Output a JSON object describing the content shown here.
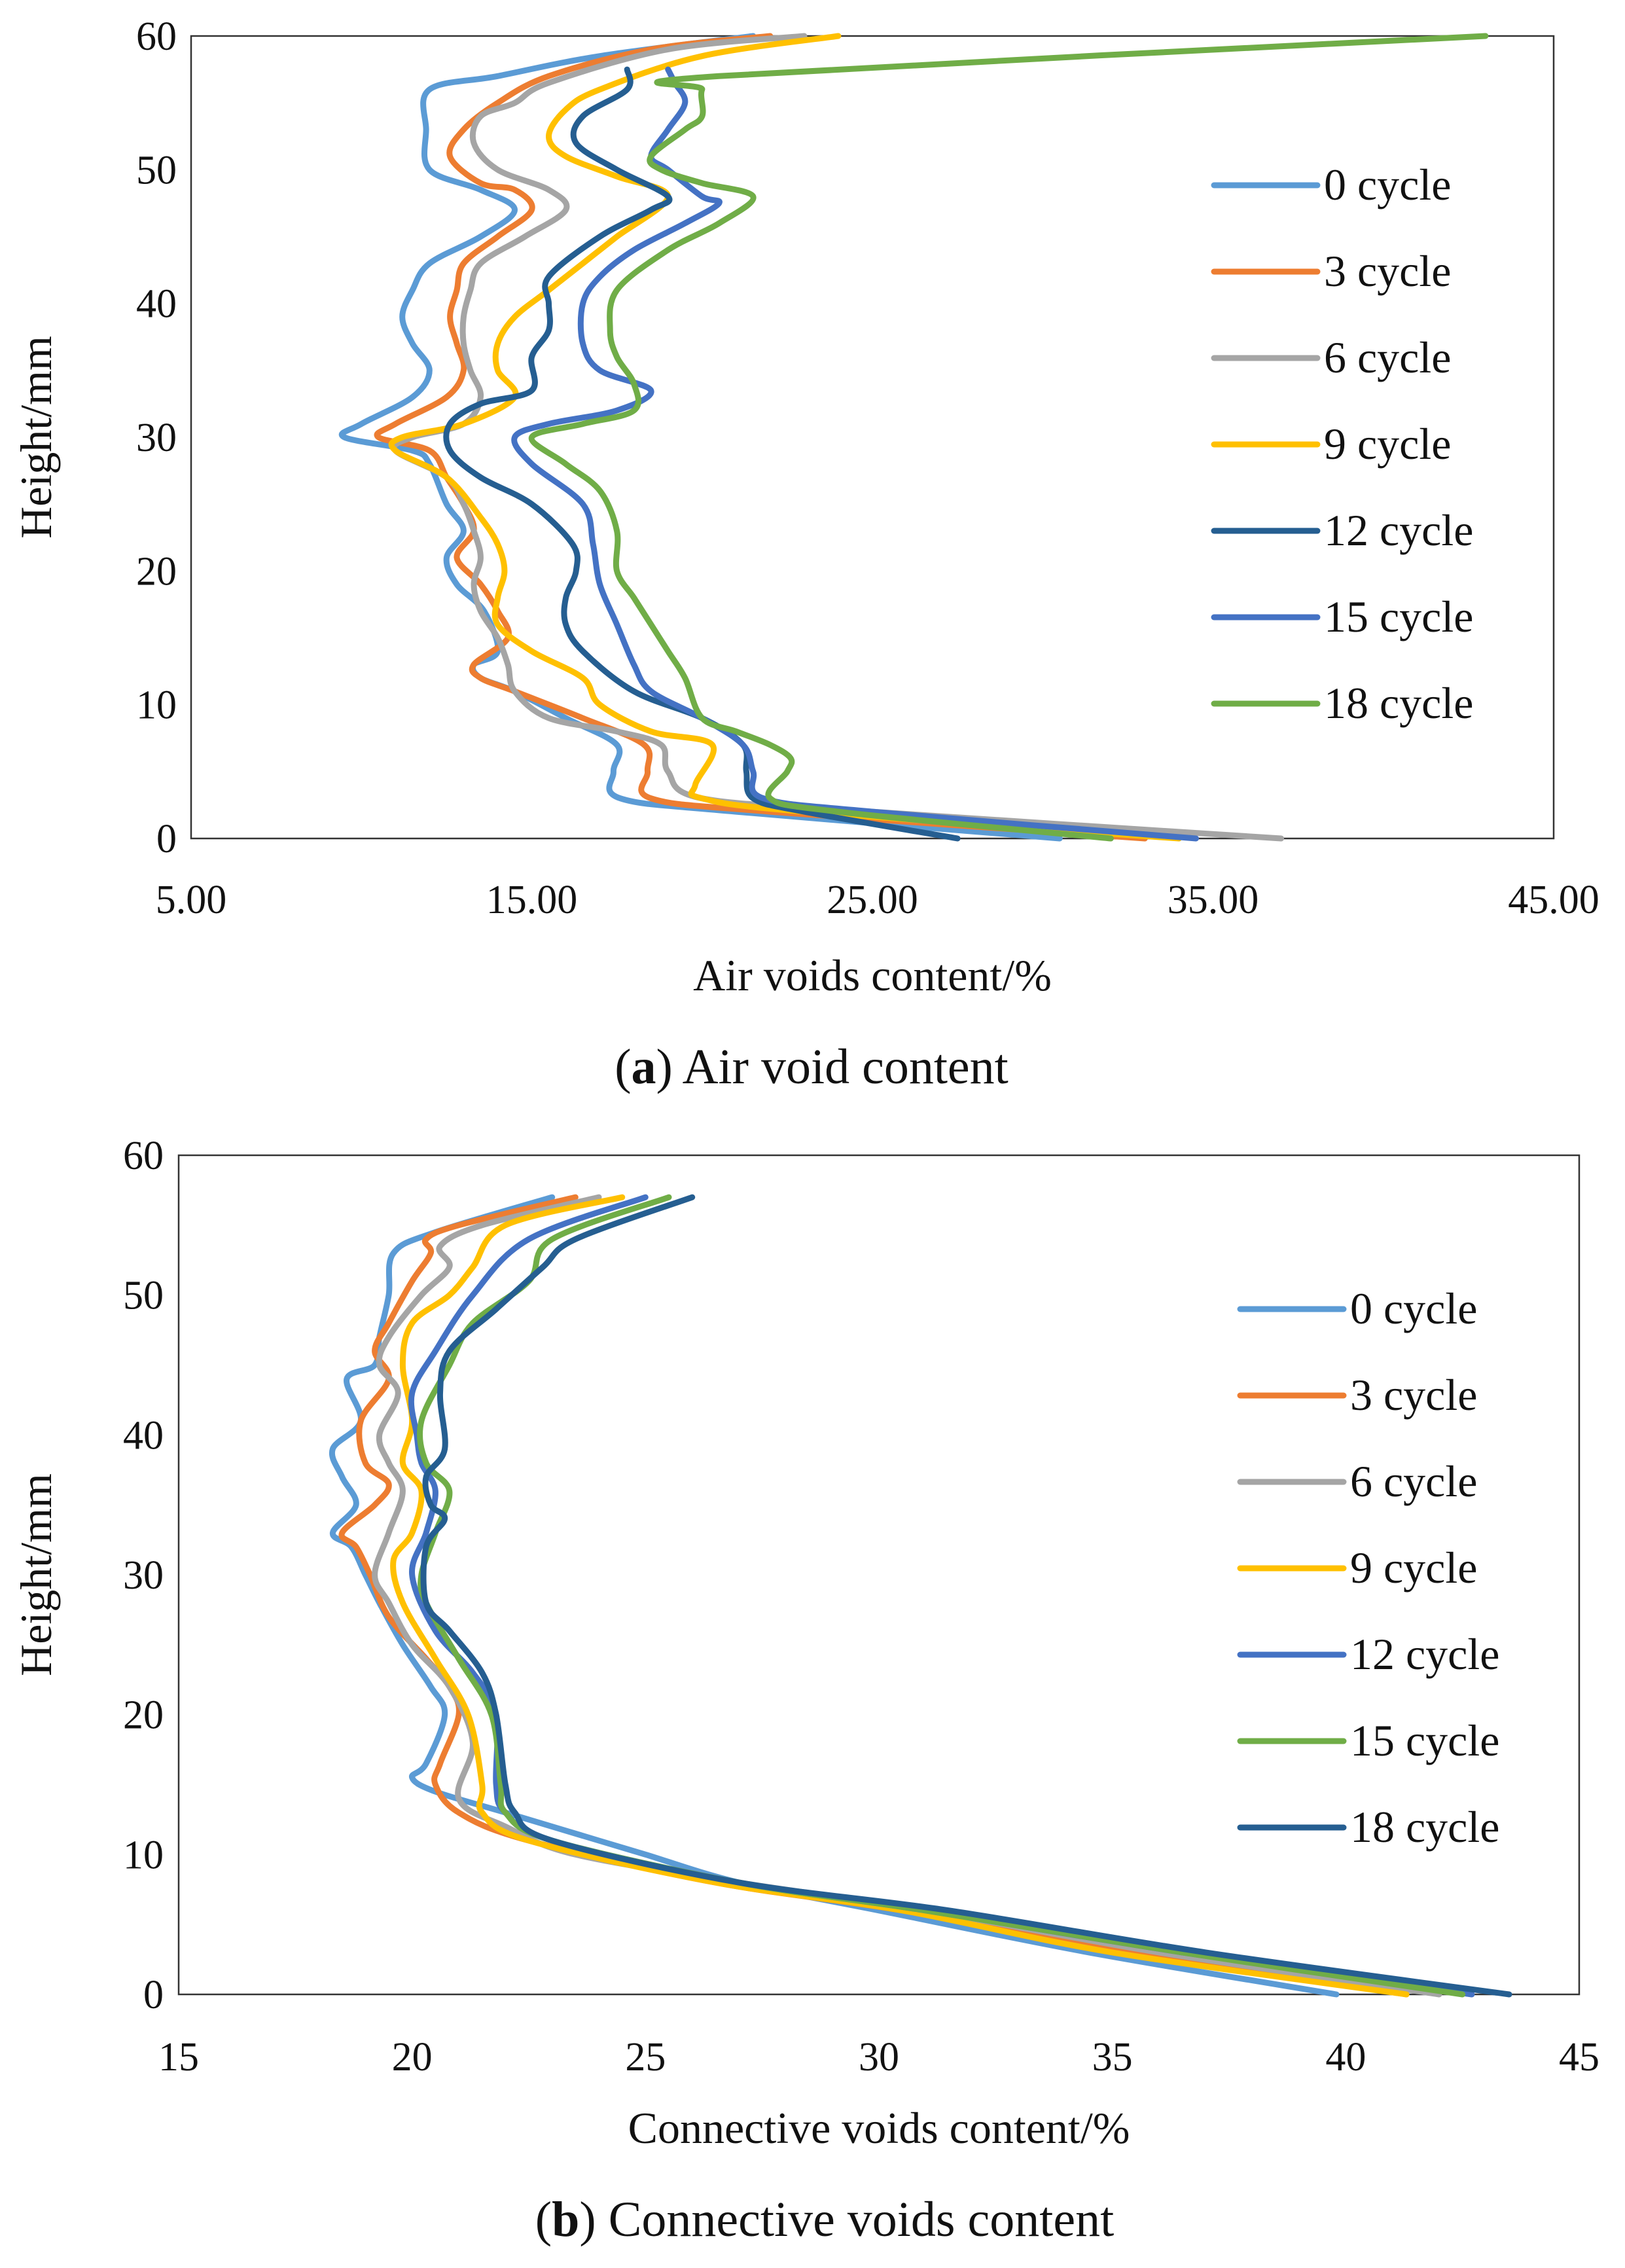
{
  "colors": {
    "c0": "#5B9BD5",
    "c3": "#ED7D31",
    "c6": "#A5A5A5",
    "c9": "#FFC000",
    "c12": "#255E91",
    "c15": "#4472C4",
    "c18": "#70AD47"
  },
  "chart_data": [
    {
      "type": "line",
      "title": "",
      "caption_prefix": "a",
      "caption_text": "Air void content",
      "xlabel": "Air voids content/%",
      "ylabel": "Height/mm",
      "xlim": [
        5,
        45
      ],
      "ylim": [
        0,
        60
      ],
      "xticks": [
        "5.00",
        "15.00",
        "25.00",
        "35.00",
        "45.00"
      ],
      "yticks": [
        "0",
        "10",
        "20",
        "30",
        "40",
        "50",
        "60"
      ],
      "legend_position": "right",
      "series": [
        {
          "name": "0 cycle",
          "color": "#5B9BD5",
          "x": [
            30.5,
            21,
            17.6,
            17.4,
            17.5,
            16,
            14.5,
            13.5,
            13.3,
            14,
            13.6,
            12.8,
            12.5,
            13,
            12.5,
            12,
            11.5,
            9.5,
            10,
            11.5,
            12,
            11.5,
            11.2,
            11.5,
            12,
            13.5,
            14.5,
            13.5,
            12,
            11.9,
            12,
            14,
            17,
            21.5
          ],
          "y": [
            0,
            2,
            3,
            5,
            7,
            9,
            11,
            12,
            13,
            14,
            17,
            19,
            21,
            23,
            25,
            28,
            29,
            30,
            31,
            33,
            35,
            37,
            39,
            41,
            43,
            45,
            47,
            48.5,
            50,
            53,
            56,
            57,
            58.5,
            60
          ]
        },
        {
          "name": "3 cycle",
          "color": "#ED7D31",
          "x": [
            33,
            22,
            18.5,
            18.4,
            18.3,
            16.5,
            14.5,
            13.5,
            13.3,
            14.3,
            14,
            13.5,
            12.8,
            13.3,
            13,
            12.5,
            12,
            10.5,
            11,
            12.5,
            13,
            12.8,
            12.6,
            12.8,
            13,
            14,
            15,
            14.5,
            13.5,
            12.6,
            13,
            14,
            15.5,
            18.5,
            22
          ],
          "y": [
            0,
            2,
            3,
            5,
            7,
            9,
            11,
            12,
            13,
            15,
            17,
            19,
            21,
            23,
            25,
            27,
            29,
            30,
            31,
            33,
            35,
            37,
            39,
            41,
            43,
            45,
            47,
            48.5,
            49,
            51,
            53,
            55,
            57,
            59,
            60
          ]
        },
        {
          "name": "6 cycle",
          "color": "#A5A5A5",
          "x": [
            37,
            25,
            20,
            19,
            18.8,
            17.5,
            15.5,
            14.5,
            14.3,
            14,
            13.5,
            13.3,
            13.5,
            13.3,
            13,
            12.5,
            11,
            11.5,
            13,
            13.5,
            13.2,
            13,
            13,
            13.2,
            13.5,
            14.8,
            16,
            15.5,
            14,
            13.3,
            13.5,
            14.5,
            15.5,
            19,
            23
          ],
          "y": [
            0,
            2,
            3,
            5,
            7,
            8,
            9,
            11,
            13,
            15,
            17,
            19,
            21,
            23,
            25,
            27,
            29,
            30,
            31,
            33,
            35,
            37,
            39,
            41,
            43,
            45,
            47,
            48.5,
            50,
            52,
            54,
            55,
            56.5,
            59,
            60
          ]
        },
        {
          "name": "9 cycle",
          "color": "#FFC000",
          "x": [
            34,
            23,
            20,
            19.8,
            20.3,
            18.5,
            17,
            16.5,
            15,
            14,
            14,
            14.2,
            14,
            13.5,
            12.5,
            11,
            11.2,
            13,
            14.5,
            14,
            14,
            14.5,
            15.5,
            16.5,
            17.5,
            19,
            17.5,
            16,
            15.5,
            16,
            17,
            20,
            24
          ],
          "y": [
            0,
            2,
            3,
            4,
            7,
            8,
            10,
            12,
            14,
            16,
            18,
            20,
            22,
            24,
            27,
            29,
            30,
            31,
            33,
            35,
            37,
            39,
            41,
            43,
            45,
            48,
            49.5,
            51,
            52.5,
            54.5,
            56,
            58.5,
            60
          ]
        },
        {
          "name": "12 cycle",
          "color": "#255E91",
          "x": [
            27.5,
            23,
            21.5,
            21.3,
            21.2,
            20,
            18,
            16.5,
            16,
            16,
            16.3,
            16.2,
            15,
            13.5,
            12.6,
            12.6,
            13.5,
            15,
            15,
            15.5,
            15.5,
            15.5,
            17,
            18.5,
            19,
            17.5,
            16.3,
            16.5,
            17.8,
            17.8
          ],
          "y": [
            0,
            2,
            3,
            5,
            7,
            9,
            11,
            14,
            16,
            18,
            20,
            22,
            25,
            27,
            29,
            31,
            32.5,
            33.5,
            36,
            38,
            40,
            42,
            45,
            47,
            48,
            50,
            52,
            54,
            56,
            57.5
          ]
        },
        {
          "name": "15 cycle",
          "color": "#4472C4",
          "x": [
            34.5,
            25,
            21.8,
            21.5,
            21.2,
            20,
            18.5,
            18,
            17.5,
            17,
            16.8,
            16.5,
            15,
            14.5,
            15.5,
            17.5,
            18.5,
            17,
            16.5,
            16.5,
            17,
            18,
            19.5,
            20.5,
            20,
            19,
            18.5,
            19,
            19.5,
            19.2,
            19
          ],
          "y": [
            0,
            2,
            3,
            5,
            7,
            9,
            11,
            13,
            16,
            19,
            22,
            25,
            28,
            30,
            31,
            32,
            33.5,
            35,
            37,
            40,
            42,
            44,
            46,
            47.5,
            48,
            50,
            51,
            53,
            55,
            56.5,
            57.5
          ]
        },
        {
          "name": "18 cycle",
          "color": "#70AD47",
          "x": [
            32,
            24,
            22,
            22.5,
            22.6,
            22,
            21,
            20,
            19.5,
            19,
            18.5,
            18,
            17.5,
            17.5,
            17,
            16,
            15,
            16.5,
            18,
            18,
            17.5,
            17.3,
            17.5,
            19,
            20.5,
            21.5,
            20,
            18.8,
            18.5,
            19.5,
            20,
            20,
            20.5,
            43
          ],
          "y": [
            0,
            2,
            3,
            5,
            6,
            7,
            8,
            9,
            12,
            14,
            16,
            18,
            20,
            23,
            26,
            28,
            30,
            31,
            32,
            34,
            36,
            38,
            41,
            44,
            46,
            48,
            49,
            50,
            51,
            53,
            54,
            56,
            57,
            60
          ]
        }
      ]
    },
    {
      "type": "line",
      "title": "",
      "caption_prefix": "b",
      "caption_text": "Connective voids content",
      "xlabel": "Connective voids content/%",
      "ylabel": "Height/mm",
      "xlim": [
        15,
        45
      ],
      "ylim": [
        0,
        60
      ],
      "xticks": [
        "15",
        "20",
        "25",
        "30",
        "35",
        "40",
        "45"
      ],
      "yticks": [
        "0",
        "10",
        "20",
        "30",
        "40",
        "50",
        "60"
      ],
      "legend_position": "right",
      "series": [
        {
          "name": "0 cycle",
          "color": "#5B9BD5",
          "x": [
            39.8,
            34.5,
            30,
            27,
            25,
            24,
            22,
            20.5,
            20,
            20.3,
            20.7,
            20.4,
            19.8,
            19.3,
            19,
            18.7,
            18.3,
            18.8,
            18.5,
            18.3,
            18.9,
            18.6,
            19.2,
            19.3,
            19.5,
            19.6,
            20.5,
            23
          ],
          "y": [
            0,
            3,
            6,
            8,
            10,
            11,
            13,
            14.5,
            15.5,
            16.5,
            20,
            22,
            25,
            28,
            30,
            32,
            33,
            35,
            37,
            39,
            41,
            44,
            45,
            47,
            50,
            53,
            54.5,
            57
          ]
        },
        {
          "name": "3 cycle",
          "color": "#ED7D31",
          "x": [
            41.3,
            35.5,
            30.5,
            26.5,
            22.5,
            21,
            20.5,
            20.6,
            21,
            20.8,
            20.3,
            19.5,
            19.1,
            18.8,
            18.5,
            19.2,
            19.5,
            19,
            18.9,
            19.5,
            19.2,
            19.5,
            20,
            20.4,
            20.3,
            21,
            23.5
          ],
          "y": [
            0,
            3,
            6,
            8,
            11,
            13,
            15,
            16.5,
            20,
            22,
            24,
            27,
            30,
            32,
            33,
            35,
            36.5,
            38,
            41,
            44,
            46,
            48,
            51,
            53,
            54,
            55,
            57
          ]
        },
        {
          "name": "6 cycle",
          "color": "#A5A5A5",
          "x": [
            42,
            36,
            31,
            27,
            23.5,
            22,
            21,
            21.3,
            20.8,
            20,
            19.5,
            19.2,
            19.5,
            19.8,
            19.5,
            19.3,
            19.7,
            19.3,
            19.5,
            20.2,
            20.8,
            20.6,
            21.5,
            24
          ],
          "y": [
            0,
            3,
            6,
            8,
            10,
            12,
            14,
            18,
            22,
            25,
            28,
            30,
            33,
            36,
            38,
            40,
            43,
            45,
            47,
            50,
            52,
            53.5,
            55,
            57
          ]
        },
        {
          "name": "9 cycle",
          "color": "#FFC000",
          "x": [
            41.3,
            35,
            30.5,
            26.5,
            22.5,
            21.5,
            21.5,
            21.2,
            20.5,
            19.8,
            19.6,
            20,
            20.2,
            19.8,
            20,
            19.8,
            20,
            20.8,
            21.3,
            22,
            24.5
          ],
          "y": [
            0,
            3,
            6,
            8,
            11,
            13,
            15,
            20,
            24,
            28,
            31,
            33,
            36,
            38,
            41,
            45,
            48,
            50,
            52,
            55,
            57
          ]
        },
        {
          "name": "12 cycle",
          "color": "#4472C4",
          "x": [
            42.7,
            36.5,
            31,
            27,
            23,
            22,
            21.8,
            21.8,
            21.3,
            20.5,
            20,
            20.3,
            20.5,
            20.2,
            20.1,
            20,
            20.5,
            21.3,
            22.5,
            25
          ],
          "y": [
            0,
            3,
            6,
            8,
            11,
            13,
            15,
            20,
            23,
            26,
            30,
            33,
            36,
            38,
            40,
            43,
            46,
            50,
            54,
            57
          ]
        },
        {
          "name": "15 cycle",
          "color": "#70AD47",
          "x": [
            42.5,
            36.5,
            31,
            27,
            23,
            22,
            21.9,
            21.7,
            21,
            20.3,
            20.2,
            20.5,
            20.8,
            20.3,
            20.2,
            20.8,
            21.3,
            22.5,
            23,
            25.5
          ],
          "y": [
            0,
            3,
            6,
            8,
            11,
            13,
            15,
            20,
            24,
            28,
            30,
            33,
            36,
            38,
            41,
            45,
            48,
            51,
            54,
            57
          ]
        },
        {
          "name": "18 cycle",
          "color": "#255E91",
          "x": [
            43.5,
            37,
            31.5,
            27,
            23,
            22.2,
            22,
            21.8,
            21.5,
            20.8,
            20.3,
            20.3,
            20.7,
            20.4,
            20.3,
            20.7,
            20.6,
            20.8,
            21.8,
            22.8,
            23.5,
            26
          ],
          "y": [
            0,
            3,
            6,
            8,
            11,
            13,
            15,
            20,
            23,
            26,
            28,
            32,
            34,
            35,
            37,
            39,
            43,
            46,
            49,
            52,
            54,
            57
          ]
        }
      ]
    }
  ]
}
